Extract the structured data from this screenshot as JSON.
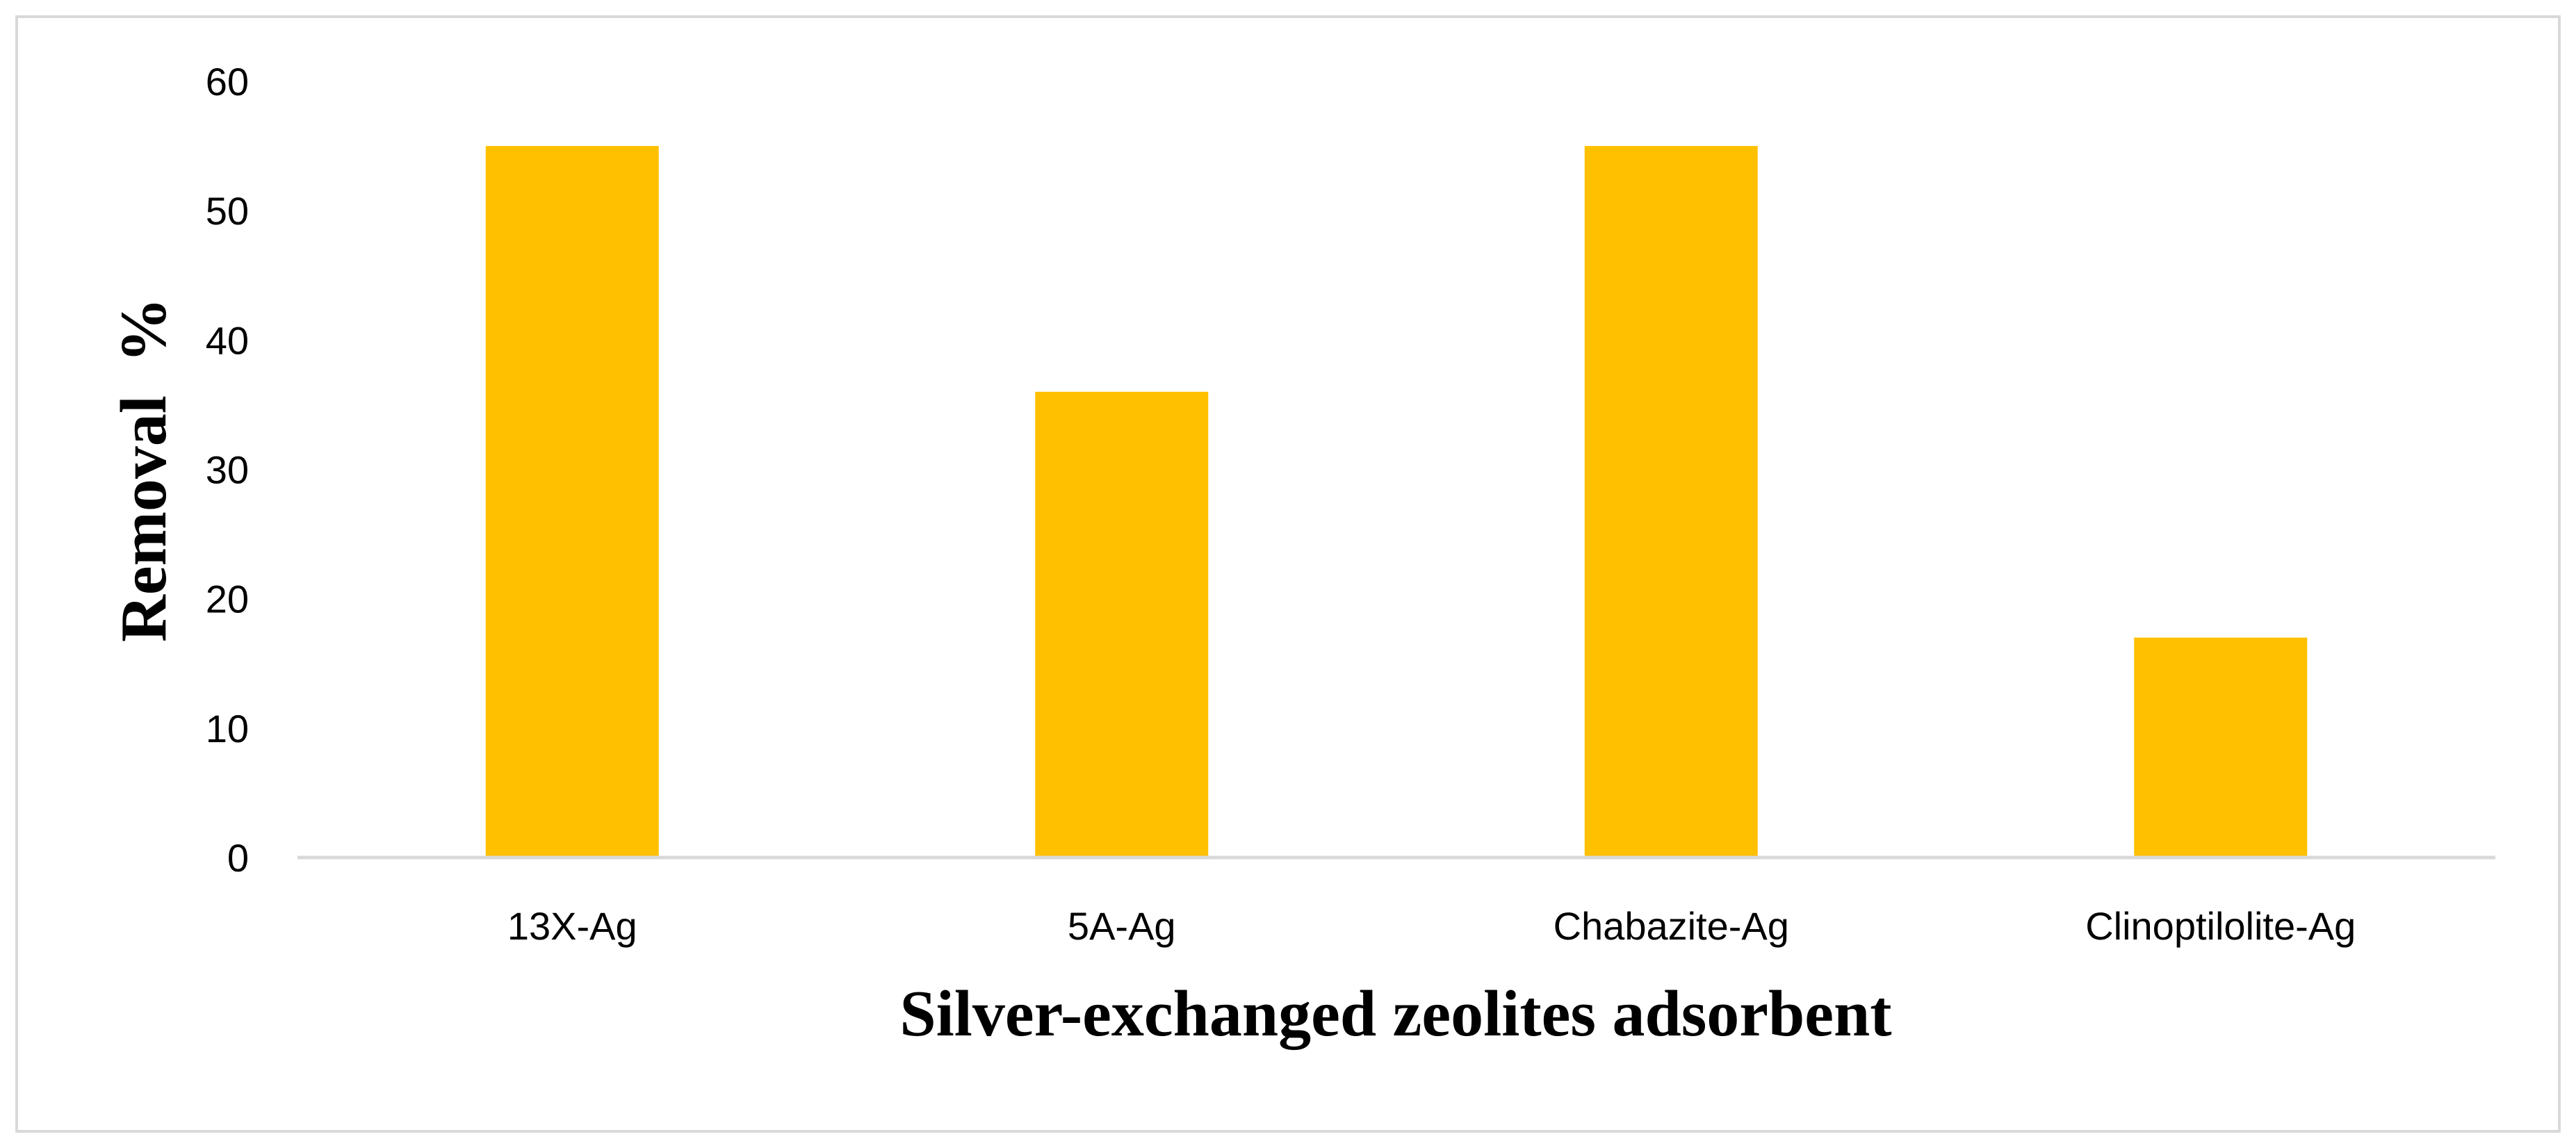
{
  "chart_data": {
    "type": "bar",
    "categories": [
      "13X-Ag",
      "5A-Ag",
      "Chabazite-Ag",
      "Clinoptilolite-Ag"
    ],
    "values": [
      55,
      36,
      55,
      17
    ],
    "xlabel": "Silver-exchanged zeolites adsorbent",
    "ylabel": "Removal  %",
    "ylim": [
      0,
      60
    ],
    "yticks": [
      0,
      10,
      20,
      30,
      40,
      50,
      60
    ],
    "grid": false,
    "legend": "none",
    "colors": {
      "bar": "#FFC000",
      "axis": "#d9d9d9",
      "frame": "#d9d9d9"
    }
  }
}
